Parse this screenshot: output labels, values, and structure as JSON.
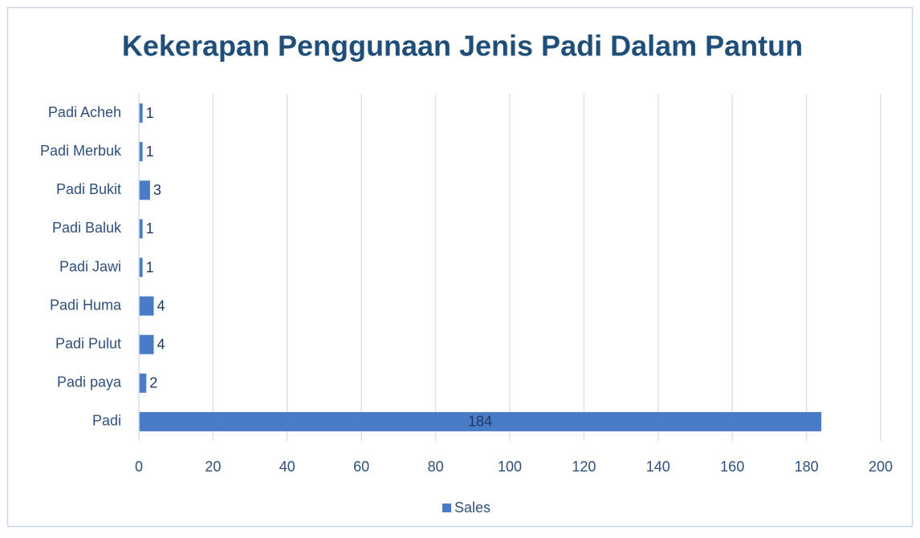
{
  "chart_data": {
    "type": "bar",
    "orientation": "horizontal",
    "title": "Kekerapan Penggunaan Jenis Padi Dalam Pantun",
    "categories": [
      "Padi",
      "Padi paya",
      "Padi Pulut",
      "Padi Huma",
      "Padi Jawi",
      "Padi Baluk",
      "Padi Bukit",
      "Padi Merbuk",
      "Padi Acheh"
    ],
    "series": [
      {
        "name": "Sales",
        "color": "#4a7bc6",
        "values": [
          184,
          2,
          4,
          4,
          1,
          1,
          3,
          1,
          1
        ]
      }
    ],
    "xlim": [
      0,
      200
    ],
    "xticks": [
      0,
      20,
      40,
      60,
      80,
      100,
      120,
      140,
      160,
      180,
      200
    ],
    "grid": true,
    "legend": "bottom"
  }
}
